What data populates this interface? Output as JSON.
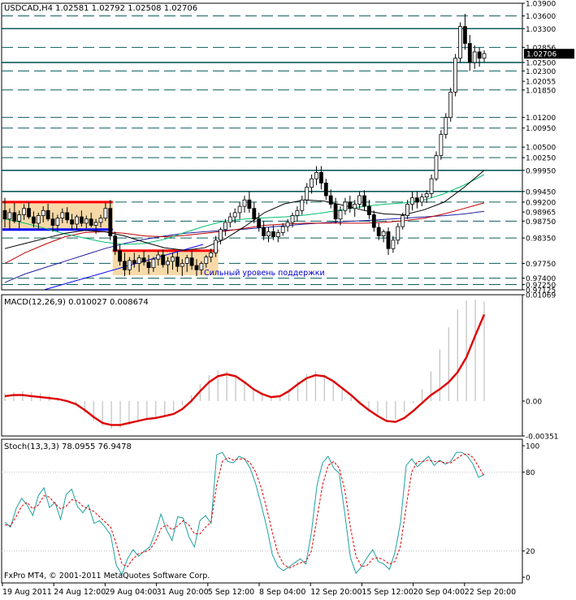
{
  "symbol_header": "USDCAD,H4  1.02581 1.02792 1.02508 1.02706",
  "annotation": "Сильный уровень поддержки",
  "copyright": "FxPro MT4, © 2001-2011 MetaQuotes Software Corp.",
  "colors": {
    "background": "#ffffff",
    "grid": "#000000",
    "candle": "#000000",
    "level_line": "#0d5c5c",
    "red": "#ff0000",
    "blue": "#0000ff",
    "box_fill": "#f7d9a8",
    "ma_black": "#000000",
    "ma_green": "#00c070",
    "ma_blue": "#2020a0",
    "ma_red": "#c00000",
    "macd_hist": "#c0c0c0",
    "macd_signal": "#dd0000",
    "stoch_main": "#20a0a0",
    "stoch_signal": "#dd0000",
    "annotation_text": "#0000cc"
  },
  "chart_data": [
    {
      "type": "candlestick",
      "title": "USDCAD,H4  1.02581 1.02792 1.02508 1.02706",
      "ylim": [
        0.97125,
        1.039
      ],
      "y_ticks": [
        "1.03900",
        "1.03600",
        "1.03300",
        "1.02856",
        "1.02706",
        "1.02500",
        "1.02300",
        "1.02055",
        "1.01850",
        "1.01200",
        "1.00950",
        "1.00500",
        "1.00250",
        "0.99950",
        "0.99450",
        "0.99200",
        "0.98965",
        "0.98750",
        "0.98350",
        "0.97750",
        "0.97400",
        "0.97250",
        "0.97125"
      ],
      "horizontal_levels": [
        1.036,
        1.033,
        1.02856,
        1.025,
        1.023,
        1.0185,
        1.012,
        1.0095,
        1.005,
        1.0025,
        0.9995,
        0.9945,
        0.992,
        0.9875,
        0.9835,
        0.9775,
        0.974,
        0.9725
      ],
      "solid_levels": [
        1.033,
        1.025,
        0.9995,
        0.9945
      ],
      "current_price": 1.02706,
      "resistance_box_top": 0.992,
      "support_box_bottom": 0.9855,
      "lower_box_top": 0.9805,
      "annotation": "Сильный уровень поддержки",
      "ohlc": [
        [
          0.99,
          0.993,
          0.986,
          0.988
        ],
        [
          0.988,
          0.9905,
          0.9855,
          0.9895
        ],
        [
          0.9895,
          0.9918,
          0.987,
          0.9875
        ],
        [
          0.9875,
          0.99,
          0.9858,
          0.989
        ],
        [
          0.989,
          0.9915,
          0.9878,
          0.9905
        ],
        [
          0.9905,
          0.992,
          0.988,
          0.9885
        ],
        [
          0.9885,
          0.9898,
          0.986,
          0.987
        ],
        [
          0.987,
          0.9895,
          0.9855,
          0.9888
        ],
        [
          0.9888,
          0.991,
          0.9872,
          0.99
        ],
        [
          0.99,
          0.9916,
          0.9875,
          0.988
        ],
        [
          0.988,
          0.9895,
          0.985,
          0.9865
        ],
        [
          0.9865,
          0.989,
          0.985,
          0.9882
        ],
        [
          0.9882,
          0.9905,
          0.987,
          0.9895
        ],
        [
          0.9895,
          0.9908,
          0.987,
          0.9878
        ],
        [
          0.9878,
          0.9892,
          0.9855,
          0.9868
        ],
        [
          0.9868,
          0.989,
          0.9855,
          0.9885
        ],
        [
          0.9885,
          0.99,
          0.9862,
          0.987
        ],
        [
          0.987,
          0.9888,
          0.9858,
          0.988
        ],
        [
          0.988,
          0.9895,
          0.986,
          0.9865
        ],
        [
          0.9865,
          0.988,
          0.9845,
          0.9872
        ],
        [
          0.9872,
          0.989,
          0.986,
          0.9882
        ],
        [
          0.9882,
          0.9918,
          0.9875,
          0.9905
        ],
        [
          0.9905,
          0.9925,
          0.983,
          0.984
        ],
        [
          0.984,
          0.985,
          0.9795,
          0.9805
        ],
        [
          0.9805,
          0.9818,
          0.977,
          0.978
        ],
        [
          0.978,
          0.98,
          0.9745,
          0.976
        ],
        [
          0.976,
          0.979,
          0.9748,
          0.9782
        ],
        [
          0.9782,
          0.98,
          0.9765,
          0.9775
        ],
        [
          0.9775,
          0.9795,
          0.9755,
          0.9788
        ],
        [
          0.9788,
          0.9805,
          0.977,
          0.9778
        ],
        [
          0.9778,
          0.9795,
          0.975,
          0.9765
        ],
        [
          0.9765,
          0.979,
          0.9755,
          0.9785
        ],
        [
          0.9785,
          0.9805,
          0.977,
          0.9795
        ],
        [
          0.9795,
          0.9808,
          0.9765,
          0.9772
        ],
        [
          0.9772,
          0.979,
          0.975,
          0.978
        ],
        [
          0.978,
          0.98,
          0.976,
          0.979
        ],
        [
          0.979,
          0.9802,
          0.9755,
          0.9768
        ],
        [
          0.9768,
          0.9785,
          0.9745,
          0.9775
        ],
        [
          0.9775,
          0.9795,
          0.9755,
          0.9788
        ],
        [
          0.9788,
          0.9805,
          0.976,
          0.977
        ],
        [
          0.977,
          0.9785,
          0.9745,
          0.976
        ],
        [
          0.976,
          0.978,
          0.9748,
          0.9775
        ],
        [
          0.9775,
          0.9795,
          0.9765,
          0.979
        ],
        [
          0.979,
          0.981,
          0.9778,
          0.98
        ],
        [
          0.98,
          0.984,
          0.979,
          0.983
        ],
        [
          0.983,
          0.986,
          0.982,
          0.9855
        ],
        [
          0.9855,
          0.988,
          0.984,
          0.9872
        ],
        [
          0.9872,
          0.9895,
          0.986,
          0.9885
        ],
        [
          0.9885,
          0.9905,
          0.987,
          0.9895
        ],
        [
          0.9895,
          0.992,
          0.988,
          0.991
        ],
        [
          0.991,
          0.9935,
          0.9895,
          0.9925
        ],
        [
          0.9925,
          0.9945,
          0.9895,
          0.9905
        ],
        [
          0.9905,
          0.992,
          0.987,
          0.988
        ],
        [
          0.988,
          0.9895,
          0.985,
          0.986
        ],
        [
          0.986,
          0.9875,
          0.983,
          0.984
        ],
        [
          0.984,
          0.986,
          0.9825,
          0.985
        ],
        [
          0.985,
          0.9865,
          0.983,
          0.9838
        ],
        [
          0.9838,
          0.9855,
          0.9825,
          0.9848
        ],
        [
          0.9848,
          0.987,
          0.984,
          0.9862
        ],
        [
          0.9862,
          0.988,
          0.985,
          0.9872
        ],
        [
          0.9872,
          0.9895,
          0.986,
          0.9888
        ],
        [
          0.9888,
          0.991,
          0.9875,
          0.99
        ],
        [
          0.99,
          0.9935,
          0.989,
          0.9925
        ],
        [
          0.9925,
          0.9965,
          0.9915,
          0.9955
        ],
        [
          0.9955,
          0.9985,
          0.994,
          0.9975
        ],
        [
          0.9975,
          1.0005,
          0.996,
          0.999
        ],
        [
          0.999,
          1.0005,
          0.995,
          0.9965
        ],
        [
          0.9965,
          0.9975,
          0.9925,
          0.9935
        ],
        [
          0.9935,
          0.995,
          0.9905,
          0.9915
        ],
        [
          0.9915,
          0.993,
          0.987,
          0.988
        ],
        [
          0.988,
          0.991,
          0.9865,
          0.99
        ],
        [
          0.99,
          0.993,
          0.989,
          0.992
        ],
        [
          0.992,
          0.9935,
          0.9895,
          0.9905
        ],
        [
          0.9905,
          0.9925,
          0.9885,
          0.9915
        ],
        [
          0.9915,
          0.9945,
          0.9905,
          0.9935
        ],
        [
          0.9935,
          0.9948,
          0.99,
          0.991
        ],
        [
          0.991,
          0.9925,
          0.988,
          0.989
        ],
        [
          0.989,
          0.99,
          0.985,
          0.986
        ],
        [
          0.986,
          0.987,
          0.983,
          0.984
        ],
        [
          0.984,
          0.9855,
          0.9825,
          0.985
        ],
        [
          0.985,
          0.986,
          0.9795,
          0.981
        ],
        [
          0.981,
          0.984,
          0.98,
          0.983
        ],
        [
          0.983,
          0.987,
          0.982,
          0.9862
        ],
        [
          0.9862,
          0.9895,
          0.9855,
          0.9888
        ],
        [
          0.9888,
          0.9925,
          0.988,
          0.9915
        ],
        [
          0.9915,
          0.9945,
          0.99,
          0.993
        ],
        [
          0.993,
          0.9945,
          0.9905,
          0.992
        ],
        [
          0.992,
          0.994,
          0.991,
          0.9932
        ],
        [
          0.9932,
          0.9948,
          0.9918,
          0.994
        ],
        [
          0.994,
          0.9985,
          0.993,
          0.9975
        ],
        [
          0.9975,
          1.004,
          0.997,
          1.003
        ],
        [
          1.003,
          1.009,
          1.002,
          1.008
        ],
        [
          1.008,
          1.013,
          1.007,
          1.012
        ],
        [
          1.012,
          1.019,
          1.011,
          1.018
        ],
        [
          1.018,
          1.027,
          1.017,
          1.026
        ],
        [
          1.026,
          1.0345,
          1.025,
          1.0335
        ],
        [
          1.0335,
          1.0365,
          1.028,
          1.0295
        ],
        [
          1.0295,
          1.0315,
          1.023,
          1.025
        ],
        [
          1.025,
          1.029,
          1.0235,
          1.0275
        ],
        [
          1.0275,
          1.0285,
          1.024,
          1.026
        ],
        [
          1.026,
          1.0279,
          1.0251,
          1.0271
        ]
      ],
      "ma_black": [
        0.981,
        0.9822,
        0.9834,
        0.9846,
        0.9853,
        0.985,
        0.984,
        0.9825,
        0.9812,
        0.9806,
        0.9812,
        0.9832,
        0.9862,
        0.9895,
        0.9916,
        0.9925,
        0.9922,
        0.9912,
        0.99,
        0.9892,
        0.989,
        0.9902,
        0.992,
        0.9955,
        0.9995
      ],
      "ma_green": [
        0.988,
        0.987,
        0.9858,
        0.9845,
        0.9835,
        0.9825,
        0.982,
        0.9822,
        0.9832,
        0.9848,
        0.9863,
        0.9875,
        0.988,
        0.9883,
        0.9885,
        0.9889,
        0.9895,
        0.9903,
        0.991,
        0.9915,
        0.9918,
        0.9925,
        0.994,
        0.996,
        0.9985
      ],
      "ma_blue": [
        0.973,
        0.975,
        0.9765,
        0.978,
        0.9795,
        0.981,
        0.9822,
        0.9832,
        0.984,
        0.9846,
        0.985,
        0.9853,
        0.9856,
        0.986,
        0.9864,
        0.9868,
        0.9871,
        0.9874,
        0.9876,
        0.9879,
        0.9882,
        0.9885,
        0.9888,
        0.9892,
        0.9898
      ],
      "ma_red": [
        0.9775,
        0.98,
        0.982,
        0.9838,
        0.9848,
        0.985,
        0.9846,
        0.984,
        0.9838,
        0.9841,
        0.9846,
        0.9851,
        0.9858,
        0.9865,
        0.9868,
        0.987,
        0.987,
        0.987,
        0.987,
        0.9872,
        0.9876,
        0.9882,
        0.9892,
        0.9905,
        0.9918
      ]
    },
    {
      "type": "bar",
      "title": "MACD(12,26,9) 0.010027 0.008674",
      "ylim": [
        -0.00351,
        0.01069
      ],
      "y_ticks": [
        "0.01069",
        "0.00",
        "-0.00351"
      ],
      "histogram": [
        0.0008,
        0.0009,
        0.001,
        0.0009,
        0.0008,
        0.0006,
        0.0003,
        0.0001,
        -0.0004,
        -0.0012,
        -0.002,
        -0.0025,
        -0.0028,
        -0.0027,
        -0.0024,
        -0.0021,
        -0.0018,
        -0.0016,
        -0.0014,
        -0.001,
        -0.0004,
        0.0006,
        0.0017,
        0.0026,
        0.0031,
        0.003,
        0.0025,
        0.0018,
        0.0011,
        0.0006,
        0.0004,
        0.0006,
        0.0012,
        0.002,
        0.0027,
        0.003,
        0.0027,
        0.002,
        0.0012,
        0.0004,
        -0.0004,
        -0.0011,
        -0.0016,
        -0.002,
        -0.0018,
        -0.0011,
        -0.0002,
        0.0012,
        0.003,
        0.0052,
        0.0074,
        0.0092,
        0.0101,
        0.0102,
        0.01
      ],
      "signal": [
        0.0005,
        0.0006,
        0.0006,
        0.0005,
        0.0004,
        0.0003,
        0.0002,
        0.0,
        -0.0003,
        -0.0009,
        -0.0016,
        -0.0022,
        -0.0024,
        -0.0024,
        -0.0022,
        -0.002,
        -0.0018,
        -0.0017,
        -0.0015,
        -0.0013,
        -0.0008,
        0.0,
        0.001,
        0.0019,
        0.0025,
        0.0027,
        0.0025,
        0.0019,
        0.0012,
        0.0007,
        0.0004,
        0.0005,
        0.001,
        0.0017,
        0.0023,
        0.0026,
        0.0025,
        0.002,
        0.0013,
        0.0006,
        -0.0002,
        -0.0009,
        -0.0015,
        -0.002,
        -0.0021,
        -0.0017,
        -0.001,
        -0.0002,
        0.0006,
        0.0012,
        0.0019,
        0.0029,
        0.0044,
        0.0066,
        0.0087
      ]
    },
    {
      "type": "line",
      "title": "Stoch(13,3,3) 78.0955 76.9478",
      "ylim": [
        0,
        100
      ],
      "y_ticks": [
        "100",
        "80",
        "20",
        "0"
      ],
      "main": [
        42,
        38,
        52,
        60,
        55,
        47,
        62,
        68,
        53,
        57,
        44,
        63,
        67,
        54,
        49,
        55,
        41,
        43,
        38,
        32,
        9,
        2,
        14,
        21,
        16,
        20,
        23,
        34,
        48,
        36,
        28,
        46,
        45,
        31,
        23,
        43,
        47,
        41,
        93,
        95,
        88,
        87,
        92,
        90,
        83,
        71,
        55,
        38,
        17,
        8,
        5,
        8,
        11,
        14,
        10,
        34,
        70,
        87,
        92,
        83,
        79,
        48,
        15,
        3,
        8,
        15,
        21,
        12,
        10,
        6,
        19,
        42,
        85,
        90,
        84,
        88,
        92,
        85,
        89,
        86,
        88,
        95,
        95,
        92,
        86,
        76,
        78
      ],
      "signal": [
        40,
        39,
        46,
        54,
        57,
        52,
        55,
        62,
        61,
        56,
        52,
        54,
        59,
        58,
        54,
        52,
        50,
        46,
        42,
        38,
        25,
        10,
        8,
        14,
        18,
        19,
        21,
        27,
        37,
        40,
        36,
        39,
        43,
        40,
        33,
        33,
        38,
        42,
        70,
        88,
        91,
        89,
        90,
        90,
        87,
        80,
        68,
        52,
        34,
        18,
        10,
        7,
        9,
        11,
        12,
        20,
        45,
        70,
        85,
        88,
        83,
        66,
        38,
        16,
        8,
        9,
        14,
        15,
        13,
        10,
        12,
        24,
        54,
        80,
        88,
        88,
        89,
        88,
        88,
        87,
        87,
        90,
        93,
        94,
        91,
        84,
        77
      ]
    },
    {
      "type": "axis",
      "x_ticks": [
        "19 Aug 2011",
        "24 Aug 12:00",
        "29 Aug 04:00",
        "31 Aug 20:00",
        "5 Sep 12:00",
        "8 Sep 04:00",
        "12 Sep 20:00",
        "15 Sep 12:00",
        "20 Sep 04:00",
        "22 Sep 20:00"
      ]
    }
  ]
}
